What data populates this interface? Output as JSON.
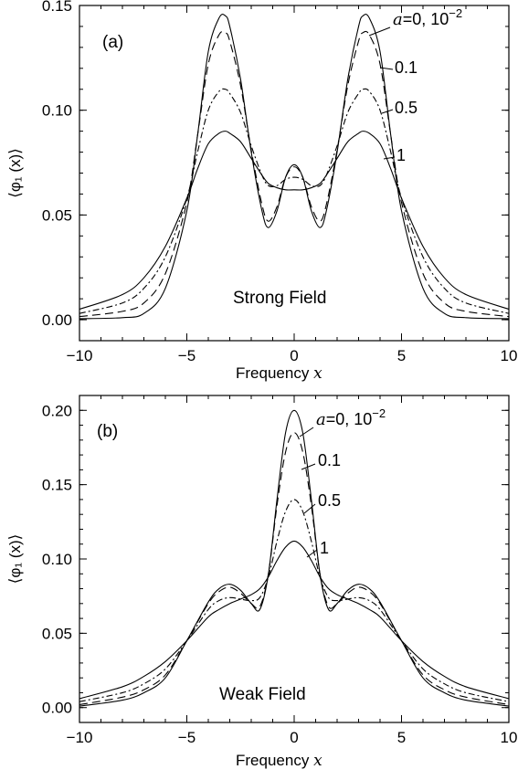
{
  "chart_data": [
    {
      "type": "line",
      "panel_label": "(a)",
      "annotation": "Strong Field",
      "xlabel": "Frequency",
      "xlabel_var": "x",
      "ylabel": "⟨φ₁ (x)⟩",
      "xlim": [
        -10,
        10
      ],
      "ylim": [
        -0.01,
        0.15
      ],
      "xticks": [
        -10,
        -5,
        0,
        5,
        10
      ],
      "xtick_labels": [
        "−10",
        "−5",
        "0",
        "5",
        "10"
      ],
      "yticks": [
        0.0,
        0.05,
        0.1,
        0.15
      ],
      "ytick_labels": [
        "0.00",
        "0.05",
        "0.10",
        "0.15"
      ],
      "grid": false,
      "series": [
        {
          "name": "a=0, 10⁻²",
          "label_parts": [
            "a",
            "=0,  10",
            "−2"
          ],
          "dash": "solid",
          "x": [
            -10,
            -8,
            -7,
            -6,
            -5,
            -4.5,
            -4,
            -3.5,
            -3.2,
            -3,
            -2.5,
            -2,
            -1.5,
            -1.2,
            -0.8,
            -0.4,
            0,
            0.4,
            0.8,
            1.2,
            1.5,
            2,
            2.5,
            3,
            3.2,
            3.5,
            4,
            4.5,
            5,
            6,
            7,
            8,
            10
          ],
          "y": [
            0.0005,
            0.001,
            0.003,
            0.015,
            0.052,
            0.088,
            0.128,
            0.144,
            0.145,
            0.14,
            0.115,
            0.08,
            0.052,
            0.044,
            0.052,
            0.068,
            0.074,
            0.068,
            0.052,
            0.044,
            0.052,
            0.08,
            0.115,
            0.14,
            0.145,
            0.144,
            0.128,
            0.088,
            0.052,
            0.015,
            0.003,
            0.001,
            0.0005
          ]
        },
        {
          "name": "0.1",
          "dash": "long-dash",
          "x": [
            -10,
            -8,
            -7,
            -6,
            -5,
            -4.5,
            -4,
            -3.5,
            -3.2,
            -3,
            -2.5,
            -2,
            -1.5,
            -1.2,
            -0.8,
            -0.4,
            0,
            0.4,
            0.8,
            1.2,
            1.5,
            2,
            2.5,
            3,
            3.2,
            3.5,
            4,
            4.5,
            5,
            6,
            7,
            8,
            10
          ],
          "y": [
            0.0015,
            0.004,
            0.008,
            0.022,
            0.056,
            0.088,
            0.122,
            0.136,
            0.137,
            0.133,
            0.112,
            0.081,
            0.055,
            0.047,
            0.054,
            0.068,
            0.073,
            0.068,
            0.054,
            0.047,
            0.055,
            0.081,
            0.112,
            0.133,
            0.137,
            0.136,
            0.122,
            0.088,
            0.056,
            0.022,
            0.008,
            0.004,
            0.0015
          ]
        },
        {
          "name": "0.5",
          "dash": "dash-dot",
          "x": [
            -10,
            -8,
            -7,
            -6,
            -5,
            -4.5,
            -4,
            -3.5,
            -3.2,
            -3,
            -2.5,
            -2,
            -1.5,
            -1.2,
            -0.8,
            -0.4,
            0,
            0.4,
            0.8,
            1.2,
            1.5,
            2,
            2.5,
            3,
            3.2,
            3.5,
            4,
            4.5,
            5,
            6,
            7,
            8,
            10
          ],
          "y": [
            0.003,
            0.008,
            0.015,
            0.03,
            0.058,
            0.08,
            0.1,
            0.109,
            0.11,
            0.108,
            0.099,
            0.083,
            0.069,
            0.064,
            0.064,
            0.067,
            0.068,
            0.067,
            0.064,
            0.064,
            0.069,
            0.083,
            0.099,
            0.108,
            0.11,
            0.109,
            0.1,
            0.08,
            0.058,
            0.03,
            0.015,
            0.008,
            0.003
          ]
        },
        {
          "name": "1",
          "dash": "solid",
          "x": [
            -10,
            -8,
            -7,
            -6,
            -5,
            -4.5,
            -4,
            -3.5,
            -3.2,
            -3,
            -2.5,
            -2,
            -1.5,
            -1.2,
            -0.8,
            -0.4,
            0,
            0.4,
            0.8,
            1.2,
            1.5,
            2,
            2.5,
            3,
            3.2,
            3.5,
            4,
            4.5,
            5,
            6,
            7,
            8,
            10
          ],
          "y": [
            0.005,
            0.012,
            0.02,
            0.035,
            0.058,
            0.072,
            0.084,
            0.089,
            0.09,
            0.089,
            0.085,
            0.077,
            0.069,
            0.065,
            0.063,
            0.062,
            0.062,
            0.062,
            0.063,
            0.065,
            0.069,
            0.077,
            0.085,
            0.089,
            0.09,
            0.089,
            0.084,
            0.072,
            0.058,
            0.035,
            0.02,
            0.012,
            0.005
          ]
        }
      ]
    },
    {
      "type": "line",
      "panel_label": "(b)",
      "annotation": "Weak Field",
      "xlabel": "Frequency",
      "xlabel_var": "x",
      "ylabel": "⟨φ₁ (x)⟩",
      "xlim": [
        -10,
        10
      ],
      "ylim": [
        -0.01,
        0.21
      ],
      "xticks": [
        -10,
        -5,
        0,
        5,
        10
      ],
      "xtick_labels": [
        "−10",
        "−5",
        "0",
        "5",
        "10"
      ],
      "yticks": [
        0.0,
        0.05,
        0.1,
        0.15,
        0.2
      ],
      "ytick_labels": [
        "0.00",
        "0.05",
        "0.10",
        "0.15",
        "0.20"
      ],
      "grid": false,
      "series": [
        {
          "name": "a=0, 10⁻²",
          "label_parts": [
            "a",
            "=0,  10",
            "−2"
          ],
          "dash": "solid",
          "x": [
            -10,
            -8,
            -7,
            -6,
            -5,
            -4,
            -3.5,
            -3,
            -2.5,
            -2,
            -1.6,
            -1.2,
            -0.8,
            -0.4,
            0,
            0.4,
            0.8,
            1.2,
            1.6,
            2,
            2.5,
            3,
            3.5,
            4,
            5,
            6,
            7,
            8,
            10
          ],
          "y": [
            0.001,
            0.005,
            0.01,
            0.02,
            0.045,
            0.071,
            0.08,
            0.083,
            0.079,
            0.07,
            0.066,
            0.09,
            0.14,
            0.185,
            0.2,
            0.185,
            0.14,
            0.09,
            0.066,
            0.07,
            0.079,
            0.083,
            0.08,
            0.071,
            0.045,
            0.02,
            0.01,
            0.005,
            0.001
          ]
        },
        {
          "name": "0.1",
          "dash": "long-dash",
          "x": [
            -10,
            -8,
            -7,
            -6,
            -5,
            -4,
            -3.5,
            -3,
            -2.5,
            -2,
            -1.6,
            -1.2,
            -0.8,
            -0.4,
            0,
            0.4,
            0.8,
            1.2,
            1.6,
            2,
            2.5,
            3,
            3.5,
            4,
            5,
            6,
            7,
            8,
            10
          ],
          "y": [
            0.002,
            0.007,
            0.012,
            0.022,
            0.045,
            0.07,
            0.078,
            0.081,
            0.077,
            0.07,
            0.068,
            0.09,
            0.136,
            0.172,
            0.185,
            0.172,
            0.136,
            0.09,
            0.068,
            0.07,
            0.077,
            0.081,
            0.078,
            0.07,
            0.045,
            0.022,
            0.012,
            0.007,
            0.002
          ]
        },
        {
          "name": "0.5",
          "dash": "dash-dot",
          "x": [
            -10,
            -8,
            -7,
            -6,
            -5,
            -4,
            -3.5,
            -3,
            -2.5,
            -2,
            -1.6,
            -1.2,
            -0.8,
            -0.4,
            0,
            0.4,
            0.8,
            1.2,
            1.6,
            2,
            2.5,
            3,
            3.5,
            4,
            5,
            6,
            7,
            8,
            10
          ],
          "y": [
            0.004,
            0.01,
            0.016,
            0.026,
            0.045,
            0.066,
            0.072,
            0.074,
            0.073,
            0.072,
            0.074,
            0.088,
            0.112,
            0.132,
            0.14,
            0.132,
            0.112,
            0.088,
            0.074,
            0.072,
            0.073,
            0.074,
            0.072,
            0.066,
            0.045,
            0.026,
            0.016,
            0.01,
            0.004
          ]
        },
        {
          "name": "1",
          "dash": "solid",
          "x": [
            -10,
            -8,
            -7,
            -6,
            -5,
            -4,
            -3.5,
            -3,
            -2.5,
            -2,
            -1.6,
            -1.2,
            -0.8,
            -0.4,
            0,
            0.4,
            0.8,
            1.2,
            1.6,
            2,
            2.5,
            3,
            3.5,
            4,
            5,
            6,
            7,
            8,
            10
          ],
          "y": [
            0.006,
            0.014,
            0.021,
            0.031,
            0.045,
            0.061,
            0.066,
            0.07,
            0.073,
            0.076,
            0.08,
            0.088,
            0.099,
            0.108,
            0.112,
            0.108,
            0.099,
            0.088,
            0.08,
            0.076,
            0.073,
            0.07,
            0.066,
            0.061,
            0.045,
            0.031,
            0.021,
            0.014,
            0.006
          ]
        }
      ]
    }
  ]
}
